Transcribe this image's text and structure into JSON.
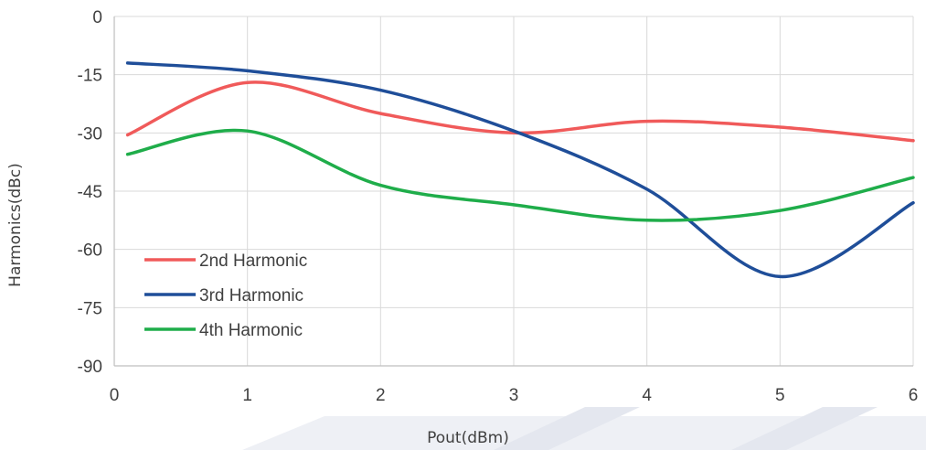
{
  "colors": {
    "background": "#ffffff",
    "grid": "#d9d9d9",
    "axis": "#bfbfbf",
    "text": "#404040",
    "watermark": "#eef0f5"
  },
  "chart_data": {
    "type": "line",
    "title": "",
    "xlabel": "Pout(dBm)",
    "ylabel": "Harmonics(dBc)",
    "xlim": [
      0,
      6
    ],
    "ylim": [
      -90,
      0
    ],
    "x_ticks": [
      0,
      1,
      2,
      3,
      4,
      5,
      6
    ],
    "y_ticks": [
      0,
      -15,
      -30,
      -45,
      -60,
      -75,
      -90
    ],
    "grid": true,
    "smooth": true,
    "legend_position": "bottom-left",
    "series": [
      {
        "name": "2nd Harmonic",
        "color": "#f05a5a",
        "x": [
          0.1,
          1,
          2,
          3,
          4,
          5,
          6
        ],
        "y": [
          -30.5,
          -17,
          -25,
          -30,
          -27,
          -28.5,
          -32
        ]
      },
      {
        "name": "3rd Harmonic",
        "color": "#1f4e99",
        "x": [
          0.1,
          1,
          2,
          3,
          4,
          5,
          6
        ],
        "y": [
          -12,
          -14,
          -19,
          -29.5,
          -44.5,
          -67,
          -48
        ]
      },
      {
        "name": "4th Harmonic",
        "color": "#1fad4a",
        "x": [
          0.1,
          1,
          2,
          3,
          4,
          5,
          6
        ],
        "y": [
          -35.5,
          -29.5,
          -43.5,
          -48.5,
          -52.5,
          -50,
          -41.5
        ]
      }
    ]
  }
}
